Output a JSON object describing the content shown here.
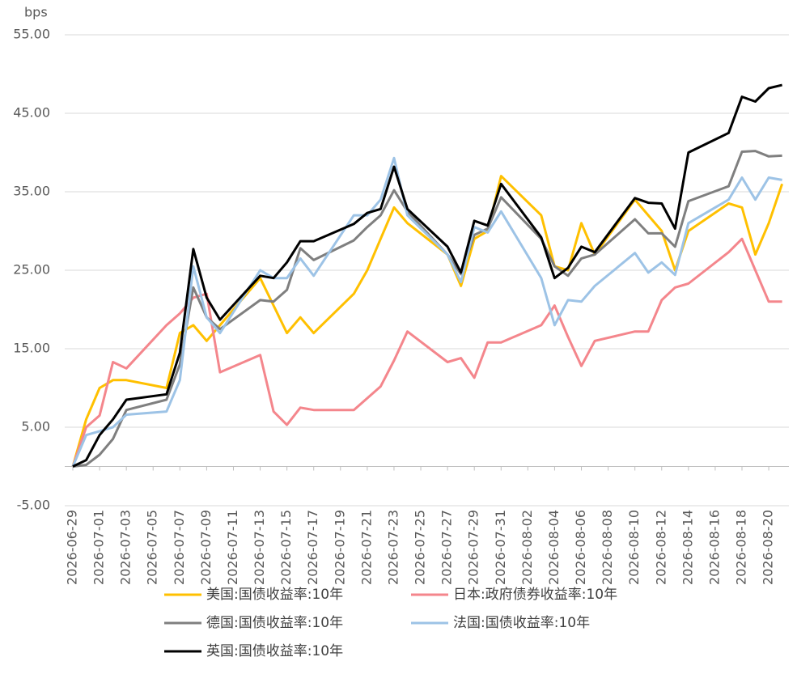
{
  "chart_data": {
    "type": "line",
    "y_label": "bps",
    "x": [
      "2026-06-29",
      "2026-06-30",
      "2026-07-01",
      "2026-07-02",
      "2026-07-03",
      "2026-07-06",
      "2026-07-07",
      "2026-07-08",
      "2026-07-09",
      "2026-07-10",
      "2026-07-13",
      "2026-07-14",
      "2026-07-15",
      "2026-07-16",
      "2026-07-17",
      "2026-07-20",
      "2026-07-21",
      "2026-07-22",
      "2026-07-23",
      "2026-07-24",
      "2026-07-27",
      "2026-07-28",
      "2026-07-29",
      "2026-07-30",
      "2026-07-31",
      "2026-08-03",
      "2026-08-04",
      "2026-08-05",
      "2026-08-06",
      "2026-08-07",
      "2026-08-10",
      "2026-08-11",
      "2026-08-12",
      "2026-08-13",
      "2026-08-14",
      "2026-08-17",
      "2026-08-18",
      "2026-08-19",
      "2026-08-20",
      "2026-08-21"
    ],
    "xticks": [
      "2026-06-29",
      "2026-07-01",
      "2026-07-03",
      "2026-07-05",
      "2026-07-07",
      "2026-07-09",
      "2026-07-11",
      "2026-07-13",
      "2026-07-15",
      "2026-07-17",
      "2026-07-19",
      "2026-07-21",
      "2026-07-23",
      "2026-07-25",
      "2026-07-27",
      "2026-07-29",
      "2026-07-31",
      "2026-08-02",
      "2026-08-04",
      "2026-08-06",
      "2026-08-08",
      "2026-08-10",
      "2026-08-12",
      "2026-08-14",
      "2026-08-16",
      "2026-08-18",
      "2026-08-20"
    ],
    "ylim": [
      -5,
      55
    ],
    "yticks": [
      {
        "value": -5,
        "label": "-5.00"
      },
      {
        "value": 5,
        "label": "5.00"
      },
      {
        "value": 15,
        "label": "15.00"
      },
      {
        "value": 25,
        "label": "25.00"
      },
      {
        "value": 35,
        "label": "35.00"
      },
      {
        "value": 45,
        "label": "45.00"
      },
      {
        "value": 55,
        "label": "55.00"
      }
    ],
    "grid": true,
    "series": [
      {
        "name": "美国:国债收益率:10年",
        "color": "#FFC000",
        "values": [
          0,
          6,
          10,
          11,
          11,
          10,
          17,
          18,
          16,
          18,
          24,
          20.5,
          17,
          19,
          17,
          22,
          25,
          29,
          33,
          31,
          27,
          23,
          29,
          30,
          37,
          32,
          25.5,
          25,
          31,
          27,
          34,
          32,
          30,
          25,
          30,
          33.5,
          33,
          27,
          31,
          36
        ]
      },
      {
        "name": "日本:政府债券收益率:10年",
        "color": "#F4868C",
        "values": [
          0,
          5,
          6.5,
          13.3,
          12.5,
          18,
          19.5,
          21.5,
          22,
          12,
          14.2,
          7,
          5.3,
          7.5,
          7.2,
          7.2,
          8.7,
          10.2,
          13.5,
          17.2,
          13.3,
          13.8,
          11.3,
          15.8,
          15.8,
          18,
          20.5,
          16.5,
          12.8,
          16,
          17.2,
          17.2,
          21.2,
          22.8,
          23.3,
          27.3,
          29,
          25,
          21,
          21
        ]
      },
      {
        "name": "德国:国债收益率:10年",
        "color": "#7F7F7F",
        "values": [
          0,
          0.2,
          1.5,
          3.5,
          7.2,
          8.5,
          13,
          22.8,
          19,
          17.5,
          21.2,
          21,
          22.5,
          27.8,
          26.3,
          28.8,
          30.5,
          32,
          35.2,
          32.5,
          27,
          24.5,
          29.5,
          30.3,
          34.3,
          29,
          25.5,
          24.3,
          26.5,
          27,
          31.5,
          29.7,
          29.7,
          28,
          33.8,
          35.7,
          40.1,
          40.2,
          39.5,
          39.6
        ]
      },
      {
        "name": "法国:国债收益率:10年",
        "color": "#9DC3E6",
        "values": [
          0,
          4,
          4.5,
          5,
          6.6,
          7,
          11,
          25.5,
          19,
          17,
          25,
          24,
          24,
          26.5,
          24.3,
          32,
          32,
          34,
          39.3,
          32,
          27,
          23.5,
          30.5,
          29.8,
          32.5,
          24,
          18,
          21.2,
          21,
          23,
          27.2,
          24.7,
          26,
          24.4,
          31,
          34,
          36.8,
          34,
          36.8,
          36.5
        ]
      },
      {
        "name": "英国:国债收益率:10年",
        "color": "#000000",
        "values": [
          0,
          0.8,
          4,
          6,
          8.5,
          9.2,
          14.5,
          27.7,
          21.5,
          18.7,
          24.3,
          24,
          26,
          28.7,
          28.7,
          30.9,
          32.3,
          32.8,
          38.2,
          32.8,
          28,
          24.7,
          31.3,
          30.7,
          36,
          29.2,
          24,
          25.3,
          28,
          27.3,
          34.2,
          33.6,
          33.5,
          30.3,
          40,
          42.5,
          47.1,
          46.5,
          48.2,
          48.6
        ]
      }
    ]
  }
}
